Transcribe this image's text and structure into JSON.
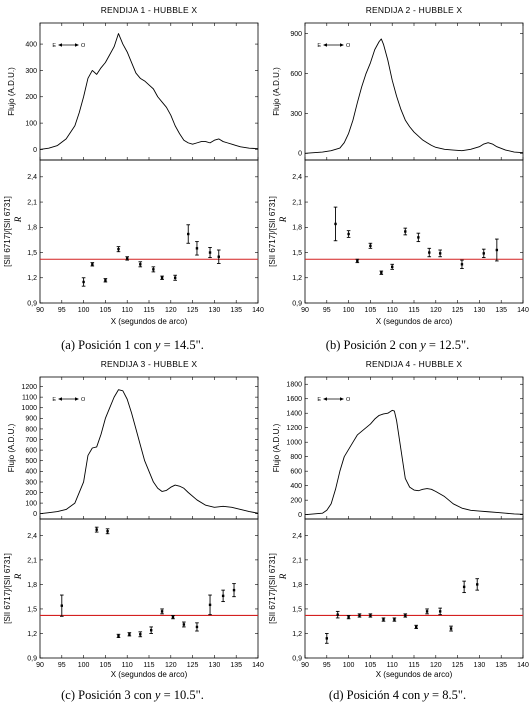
{
  "colors": {
    "reference_line": "#d42020",
    "curve": "#000000"
  },
  "chart_data": [
    {
      "type": "line",
      "title": "RENDIJA 1 - HUBBLE X",
      "caption": {
        "prefix": "(a)  Posición 1 con ",
        "var": "y",
        "suffix": " = 14.5\"."
      },
      "direction_label": {
        "left": "E",
        "right": "O"
      },
      "flux": {
        "ylabel": "Flujo (A.D.U.)",
        "yticks": [
          0,
          100,
          200,
          300,
          400
        ],
        "ylim": [
          -40,
          480
        ],
        "x": [
          90,
          92,
          94,
          96,
          98,
          99,
          100,
          101,
          102,
          103,
          104,
          105,
          106,
          107,
          108,
          109,
          110,
          111,
          112,
          113,
          114,
          115,
          116,
          117,
          118,
          119,
          120,
          121,
          122,
          123,
          124,
          125,
          126,
          127,
          128,
          129,
          130,
          131,
          132,
          133,
          134,
          135,
          136,
          138,
          140
        ],
        "y": [
          0,
          5,
          15,
          40,
          90,
          140,
          200,
          270,
          300,
          285,
          310,
          330,
          360,
          390,
          440,
          400,
          370,
          330,
          290,
          270,
          260,
          245,
          230,
          200,
          180,
          160,
          130,
          90,
          60,
          35,
          25,
          20,
          25,
          30,
          30,
          25,
          35,
          40,
          30,
          25,
          20,
          15,
          10,
          5,
          3
        ]
      },
      "ratio": {
        "ylabel": "[SII 6717]/[SII 6731]",
        "ylabel_var": "R",
        "yticks": [
          0.9,
          1.2,
          1.5,
          1.8,
          2.1,
          2.4
        ],
        "ylim": [
          0.9,
          2.6
        ],
        "reference": 1.42,
        "points": [
          {
            "x": 100,
            "y": 1.15,
            "err": 0.05
          },
          {
            "x": 102,
            "y": 1.36,
            "err": 0.02
          },
          {
            "x": 105,
            "y": 1.17,
            "err": 0.02
          },
          {
            "x": 108,
            "y": 1.54,
            "err": 0.03
          },
          {
            "x": 110,
            "y": 1.43,
            "err": 0.02
          },
          {
            "x": 113,
            "y": 1.36,
            "err": 0.03
          },
          {
            "x": 116,
            "y": 1.3,
            "err": 0.03
          },
          {
            "x": 118,
            "y": 1.2,
            "err": 0.02
          },
          {
            "x": 121,
            "y": 1.2,
            "err": 0.03
          },
          {
            "x": 124,
            "y": 1.72,
            "err": 0.11
          },
          {
            "x": 126,
            "y": 1.55,
            "err": 0.08
          },
          {
            "x": 129,
            "y": 1.5,
            "err": 0.06
          },
          {
            "x": 131,
            "y": 1.45,
            "err": 0.08
          }
        ]
      },
      "xlabel": "X (segundos de arco)",
      "xticks": [
        90,
        95,
        100,
        105,
        110,
        115,
        120,
        125,
        130,
        135,
        140
      ],
      "xlim": [
        90,
        140
      ]
    },
    {
      "type": "line",
      "title": "RENDIJA 2 - HUBBLE X",
      "caption": {
        "prefix": "(b)  Posición 2 con ",
        "var": "y",
        "suffix": " = 12.5\"."
      },
      "direction_label": {
        "left": "E",
        "right": "O"
      },
      "flux": {
        "ylabel": "Flujo (A.D.U.)",
        "yticks": [
          0,
          300,
          600,
          900
        ],
        "ylim": [
          -50,
          980
        ],
        "x": [
          90,
          92,
          94,
          96,
          98,
          99,
          100,
          101,
          102,
          103,
          104,
          105,
          106,
          107,
          107.5,
          108,
          109,
          110,
          111,
          112,
          113,
          114,
          115,
          116,
          117,
          118,
          119,
          120,
          122,
          124,
          126,
          128,
          130,
          131,
          132,
          133,
          134,
          136,
          138,
          140
        ],
        "y": [
          0,
          5,
          10,
          20,
          40,
          80,
          150,
          250,
          380,
          500,
          600,
          680,
          780,
          840,
          860,
          820,
          700,
          550,
          430,
          330,
          250,
          200,
          160,
          130,
          100,
          80,
          60,
          45,
          30,
          25,
          20,
          30,
          50,
          70,
          80,
          70,
          50,
          25,
          10,
          5
        ]
      },
      "ratio": {
        "ylabel": "[SII 6717]/[SII 6731]",
        "ylabel_var": "R",
        "yticks": [
          0.9,
          1.2,
          1.5,
          1.8,
          2.1,
          2.4
        ],
        "ylim": [
          0.9,
          2.6
        ],
        "reference": 1.42,
        "points": [
          {
            "x": 97,
            "y": 1.84,
            "err": 0.2
          },
          {
            "x": 100,
            "y": 1.72,
            "err": 0.04
          },
          {
            "x": 102,
            "y": 1.4,
            "err": 0.02
          },
          {
            "x": 105,
            "y": 1.58,
            "err": 0.03
          },
          {
            "x": 107.5,
            "y": 1.26,
            "err": 0.02
          },
          {
            "x": 110,
            "y": 1.33,
            "err": 0.03
          },
          {
            "x": 113,
            "y": 1.75,
            "err": 0.04
          },
          {
            "x": 116,
            "y": 1.68,
            "err": 0.05
          },
          {
            "x": 118.5,
            "y": 1.5,
            "err": 0.05
          },
          {
            "x": 121,
            "y": 1.49,
            "err": 0.04
          },
          {
            "x": 126,
            "y": 1.36,
            "err": 0.05
          },
          {
            "x": 131,
            "y": 1.49,
            "err": 0.05
          },
          {
            "x": 134,
            "y": 1.53,
            "err": 0.13
          }
        ]
      },
      "xlabel": "X (segundos de arco)",
      "xticks": [
        90,
        95,
        100,
        105,
        110,
        115,
        120,
        125,
        130,
        135,
        140
      ],
      "xlim": [
        90,
        140
      ]
    },
    {
      "type": "line",
      "title": "RENDIJA 3 - HUBBLE X",
      "caption": {
        "prefix": "(c)  Posición 3 con ",
        "var": "y",
        "suffix": " = 10.5\"."
      },
      "direction_label": {
        "left": "E",
        "right": "O"
      },
      "flux": {
        "ylabel": "Flujo (A.D.U.)",
        "yticks": [
          0,
          100,
          200,
          300,
          400,
          500,
          600,
          700,
          800,
          900,
          1000,
          1100,
          1200
        ],
        "ylim": [
          -50,
          1290
        ],
        "x": [
          90,
          92,
          94,
          96,
          98,
          100,
          101,
          102,
          103,
          104,
          105,
          106,
          107,
          108,
          109,
          110,
          111,
          112,
          113,
          114,
          115,
          116,
          117,
          118,
          119,
          120,
          121,
          122,
          123,
          124,
          126,
          128,
          130,
          132,
          134,
          136,
          138,
          140
        ],
        "y": [
          0,
          10,
          20,
          40,
          100,
          300,
          550,
          620,
          630,
          750,
          900,
          1000,
          1100,
          1170,
          1160,
          1080,
          950,
          800,
          650,
          500,
          400,
          300,
          240,
          210,
          220,
          250,
          270,
          260,
          240,
          200,
          130,
          80,
          60,
          70,
          60,
          40,
          20,
          5
        ]
      },
      "ratio": {
        "ylabel": "[SII 6717]/[SII 6731]",
        "ylabel_var": "R",
        "yticks": [
          0.9,
          1.2,
          1.5,
          1.8,
          2.1,
          2.4
        ],
        "ylim": [
          0.9,
          2.6
        ],
        "reference": 1.42,
        "points": [
          {
            "x": 95,
            "y": 1.54,
            "err": 0.13
          },
          {
            "x": 103,
            "y": 2.47,
            "err": 0.03
          },
          {
            "x": 105.5,
            "y": 2.45,
            "err": 0.03
          },
          {
            "x": 108,
            "y": 1.17,
            "err": 0.02
          },
          {
            "x": 110.5,
            "y": 1.19,
            "err": 0.02
          },
          {
            "x": 113,
            "y": 1.19,
            "err": 0.03
          },
          {
            "x": 115.5,
            "y": 1.24,
            "err": 0.04
          },
          {
            "x": 118,
            "y": 1.47,
            "err": 0.03
          },
          {
            "x": 120.5,
            "y": 1.4,
            "err": 0.02
          },
          {
            "x": 123,
            "y": 1.31,
            "err": 0.03
          },
          {
            "x": 126,
            "y": 1.28,
            "err": 0.05
          },
          {
            "x": 129,
            "y": 1.55,
            "err": 0.12
          },
          {
            "x": 132,
            "y": 1.66,
            "err": 0.07
          },
          {
            "x": 134.5,
            "y": 1.73,
            "err": 0.08
          }
        ]
      },
      "xlabel": "X (segundos de arco)",
      "xticks": [
        90,
        95,
        100,
        105,
        110,
        115,
        120,
        125,
        130,
        135,
        140
      ],
      "xlim": [
        90,
        140
      ]
    },
    {
      "type": "line",
      "title": "RENDIJA 4 - HUBBLE X",
      "caption": {
        "prefix": "(d)  Posición 4 con ",
        "var": "y",
        "suffix": " = 8.5\"."
      },
      "direction_label": {
        "left": "E",
        "right": "O"
      },
      "flux": {
        "ylabel": "Flujo (A.D.U.)",
        "yticks": [
          0,
          200,
          400,
          600,
          800,
          1000,
          1200,
          1400,
          1600,
          1800
        ],
        "ylim": [
          -60,
          1900
        ],
        "x": [
          90,
          92,
          94,
          95,
          96,
          97,
          98,
          99,
          100,
          101,
          102,
          103,
          104,
          105,
          106,
          107,
          108,
          109,
          110,
          110.5,
          111,
          112,
          113,
          114,
          115,
          116,
          117,
          118,
          119,
          120,
          122,
          124,
          126,
          128,
          130,
          132,
          134,
          136,
          138,
          140
        ],
        "y": [
          0,
          10,
          20,
          60,
          150,
          350,
          600,
          800,
          900,
          1000,
          1100,
          1150,
          1200,
          1250,
          1320,
          1370,
          1390,
          1400,
          1440,
          1430,
          1300,
          900,
          500,
          380,
          340,
          330,
          350,
          360,
          350,
          320,
          250,
          150,
          90,
          60,
          50,
          40,
          30,
          20,
          10,
          5
        ]
      },
      "ratio": {
        "ylabel": "[SII 6717]/[SII 6731]",
        "ylabel_var": "R",
        "yticks": [
          0.9,
          1.2,
          1.5,
          1.8,
          2.1,
          2.4
        ],
        "ylim": [
          0.9,
          2.6
        ],
        "reference": 1.42,
        "points": [
          {
            "x": 95,
            "y": 1.14,
            "err": 0.06
          },
          {
            "x": 97.5,
            "y": 1.43,
            "err": 0.04
          },
          {
            "x": 100,
            "y": 1.4,
            "err": 0.02
          },
          {
            "x": 102.5,
            "y": 1.42,
            "err": 0.02
          },
          {
            "x": 105,
            "y": 1.42,
            "err": 0.02
          },
          {
            "x": 108,
            "y": 1.37,
            "err": 0.02
          },
          {
            "x": 110.5,
            "y": 1.37,
            "err": 0.02
          },
          {
            "x": 113,
            "y": 1.42,
            "err": 0.02
          },
          {
            "x": 115.5,
            "y": 1.28,
            "err": 0.02
          },
          {
            "x": 118,
            "y": 1.47,
            "err": 0.03
          },
          {
            "x": 121,
            "y": 1.47,
            "err": 0.04
          },
          {
            "x": 123.5,
            "y": 1.26,
            "err": 0.03
          },
          {
            "x": 126.5,
            "y": 1.77,
            "err": 0.07
          },
          {
            "x": 129.5,
            "y": 1.8,
            "err": 0.07
          }
        ]
      },
      "xlabel": "X (segundos de arco)",
      "xticks": [
        90,
        95,
        100,
        105,
        110,
        115,
        120,
        125,
        130,
        135,
        140
      ],
      "xlim": [
        90,
        140
      ]
    }
  ]
}
